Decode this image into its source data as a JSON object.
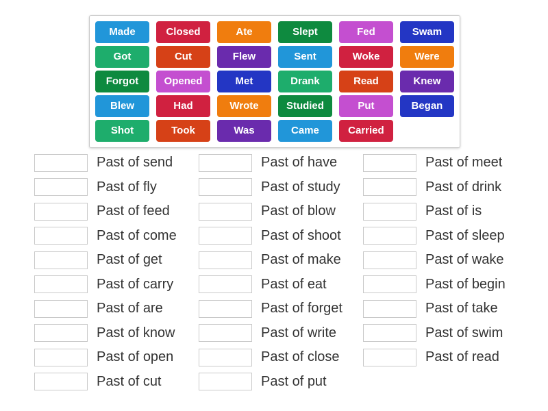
{
  "palette": {
    "light_blue": "#2196d9",
    "crimson": "#d02140",
    "orange": "#f07d0e",
    "dark_green": "#0e8a3f",
    "orchid": "#c44fd0",
    "dark_blue": "#2336c4",
    "emerald": "#1ead6c",
    "orange_red": "#d64117",
    "purple": "#6a2bad",
    "panel_border": "#c9c9c9",
    "slot_border": "#c9c9c9",
    "label_text": "#333333",
    "tile_text": "#ffffff"
  },
  "word_bank": {
    "tiles": [
      {
        "label": "Made",
        "color": "#2196d9"
      },
      {
        "label": "Closed",
        "color": "#d02140"
      },
      {
        "label": "Ate",
        "color": "#f07d0e"
      },
      {
        "label": "Slept",
        "color": "#0e8a3f"
      },
      {
        "label": "Fed",
        "color": "#c44fd0"
      },
      {
        "label": "Swam",
        "color": "#2336c4"
      },
      {
        "label": "Got",
        "color": "#1ead6c"
      },
      {
        "label": "Cut",
        "color": "#d64117"
      },
      {
        "label": "Flew",
        "color": "#6a2bad"
      },
      {
        "label": "Sent",
        "color": "#2196d9"
      },
      {
        "label": "Woke",
        "color": "#d02140"
      },
      {
        "label": "Were",
        "color": "#f07d0e"
      },
      {
        "label": "Forgot",
        "color": "#0e8a3f"
      },
      {
        "label": "Opened",
        "color": "#c44fd0"
      },
      {
        "label": "Met",
        "color": "#2336c4"
      },
      {
        "label": "Drank",
        "color": "#1ead6c"
      },
      {
        "label": "Read",
        "color": "#d64117"
      },
      {
        "label": "Knew",
        "color": "#6a2bad"
      },
      {
        "label": "Blew",
        "color": "#2196d9"
      },
      {
        "label": "Had",
        "color": "#d02140"
      },
      {
        "label": "Wrote",
        "color": "#f07d0e"
      },
      {
        "label": "Studied",
        "color": "#0e8a3f"
      },
      {
        "label": "Put",
        "color": "#c44fd0"
      },
      {
        "label": "Began",
        "color": "#2336c4"
      },
      {
        "label": "Shot",
        "color": "#1ead6c"
      },
      {
        "label": "Took",
        "color": "#d64117"
      },
      {
        "label": "Was",
        "color": "#6a2bad"
      },
      {
        "label": "Came",
        "color": "#2196d9"
      },
      {
        "label": "Carried",
        "color": "#d02140"
      }
    ]
  },
  "answers": {
    "columns": [
      {
        "items": [
          {
            "label": "Past of send"
          },
          {
            "label": "Past of fly"
          },
          {
            "label": "Past of feed"
          },
          {
            "label": "Past of come"
          },
          {
            "label": "Past of get"
          },
          {
            "label": "Past of carry"
          },
          {
            "label": "Past of are"
          },
          {
            "label": "Past of know"
          },
          {
            "label": "Past of open"
          },
          {
            "label": "Past of cut"
          }
        ]
      },
      {
        "items": [
          {
            "label": "Past of have"
          },
          {
            "label": "Past of study"
          },
          {
            "label": "Past of blow"
          },
          {
            "label": "Past of shoot"
          },
          {
            "label": "Past of make"
          },
          {
            "label": "Past of eat"
          },
          {
            "label": "Past of forget"
          },
          {
            "label": "Past of write"
          },
          {
            "label": "Past of close"
          },
          {
            "label": "Past of put"
          }
        ]
      },
      {
        "items": [
          {
            "label": "Past of meet"
          },
          {
            "label": "Past of drink"
          },
          {
            "label": "Past of is"
          },
          {
            "label": "Past of sleep"
          },
          {
            "label": "Past of wake"
          },
          {
            "label": "Past of begin"
          },
          {
            "label": "Past of take"
          },
          {
            "label": "Past of swim"
          },
          {
            "label": "Past of read"
          }
        ]
      }
    ]
  }
}
